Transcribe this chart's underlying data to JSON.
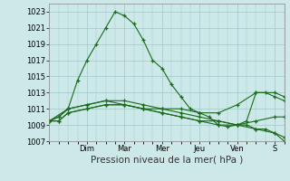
{
  "background_color": "#cce8e8",
  "grid_color": "#a0c8c8",
  "line_color": "#1a6b1a",
  "xlabel": "Pression niveau de la mer( hPa )",
  "ylim": [
    1007,
    1024
  ],
  "yticks": [
    1007,
    1009,
    1011,
    1013,
    1015,
    1017,
    1019,
    1021,
    1023
  ],
  "day_labels": [
    "Dim",
    "Mar",
    "Mer",
    "Jeu",
    "Ven",
    "S"
  ],
  "day_positions": [
    2,
    4,
    6,
    8,
    10,
    12
  ],
  "xlim": [
    0,
    12.5
  ],
  "lines": [
    {
      "x": [
        0,
        0.5,
        1.0,
        1.5,
        2.0,
        2.5,
        3.0,
        3.5,
        4.0,
        4.5,
        5.0,
        5.5,
        6.0,
        6.5,
        7.0,
        7.5,
        8.0,
        8.5,
        9.0,
        9.5,
        10.0,
        10.5,
        11.0,
        11.5,
        12.0,
        12.5
      ],
      "y": [
        1009.5,
        1010.0,
        1011.0,
        1014.5,
        1017.0,
        1019.0,
        1021.0,
        1023.0,
        1022.5,
        1021.5,
        1019.5,
        1017.0,
        1016.0,
        1014.0,
        1012.5,
        1011.0,
        1010.5,
        1010.0,
        1009.0,
        1008.8,
        1009.0,
        1009.5,
        1013.0,
        1013.0,
        1012.5,
        1012.0
      ]
    },
    {
      "x": [
        0,
        0.5,
        1.0,
        2.0,
        3.0,
        4.0,
        5.0,
        6.0,
        7.0,
        8.0,
        9.0,
        10.0,
        11.0,
        12.0,
        12.5
      ],
      "y": [
        1009.5,
        1010.0,
        1011.0,
        1011.5,
        1012.0,
        1011.5,
        1011.0,
        1011.0,
        1011.0,
        1010.5,
        1010.5,
        1011.5,
        1013.0,
        1013.0,
        1012.5
      ]
    },
    {
      "x": [
        0,
        0.5,
        1.0,
        2.0,
        3.0,
        4.0,
        5.0,
        6.0,
        7.0,
        8.0,
        9.0,
        10.0,
        11.0,
        12.0,
        12.5
      ],
      "y": [
        1009.5,
        1009.5,
        1010.5,
        1011.0,
        1011.5,
        1011.5,
        1011.0,
        1010.5,
        1010.0,
        1009.5,
        1009.0,
        1009.0,
        1009.5,
        1010.0,
        1010.0
      ]
    },
    {
      "x": [
        0,
        0.5,
        1.0,
        2.0,
        3.0,
        4.0,
        5.0,
        6.0,
        7.0,
        8.0,
        9.0,
        10.0,
        10.5,
        11.0,
        11.5,
        12.0,
        12.5
      ],
      "y": [
        1009.5,
        1009.5,
        1010.5,
        1011.0,
        1011.5,
        1011.5,
        1011.0,
        1010.5,
        1010.0,
        1009.5,
        1009.5,
        1009.0,
        1009.0,
        1008.5,
        1008.5,
        1008.0,
        1007.5
      ]
    },
    {
      "x": [
        0,
        1.0,
        2.0,
        3.0,
        4.0,
        5.0,
        6.0,
        7.0,
        8.0,
        9.0,
        10.0,
        11.0,
        12.0,
        12.5
      ],
      "y": [
        1009.5,
        1011.0,
        1011.5,
        1012.0,
        1012.0,
        1011.5,
        1011.0,
        1010.5,
        1010.0,
        1009.5,
        1009.0,
        1008.5,
        1008.0,
        1007.0
      ]
    }
  ],
  "xlabel_fontsize": 7.5,
  "tick_fontsize": 6
}
